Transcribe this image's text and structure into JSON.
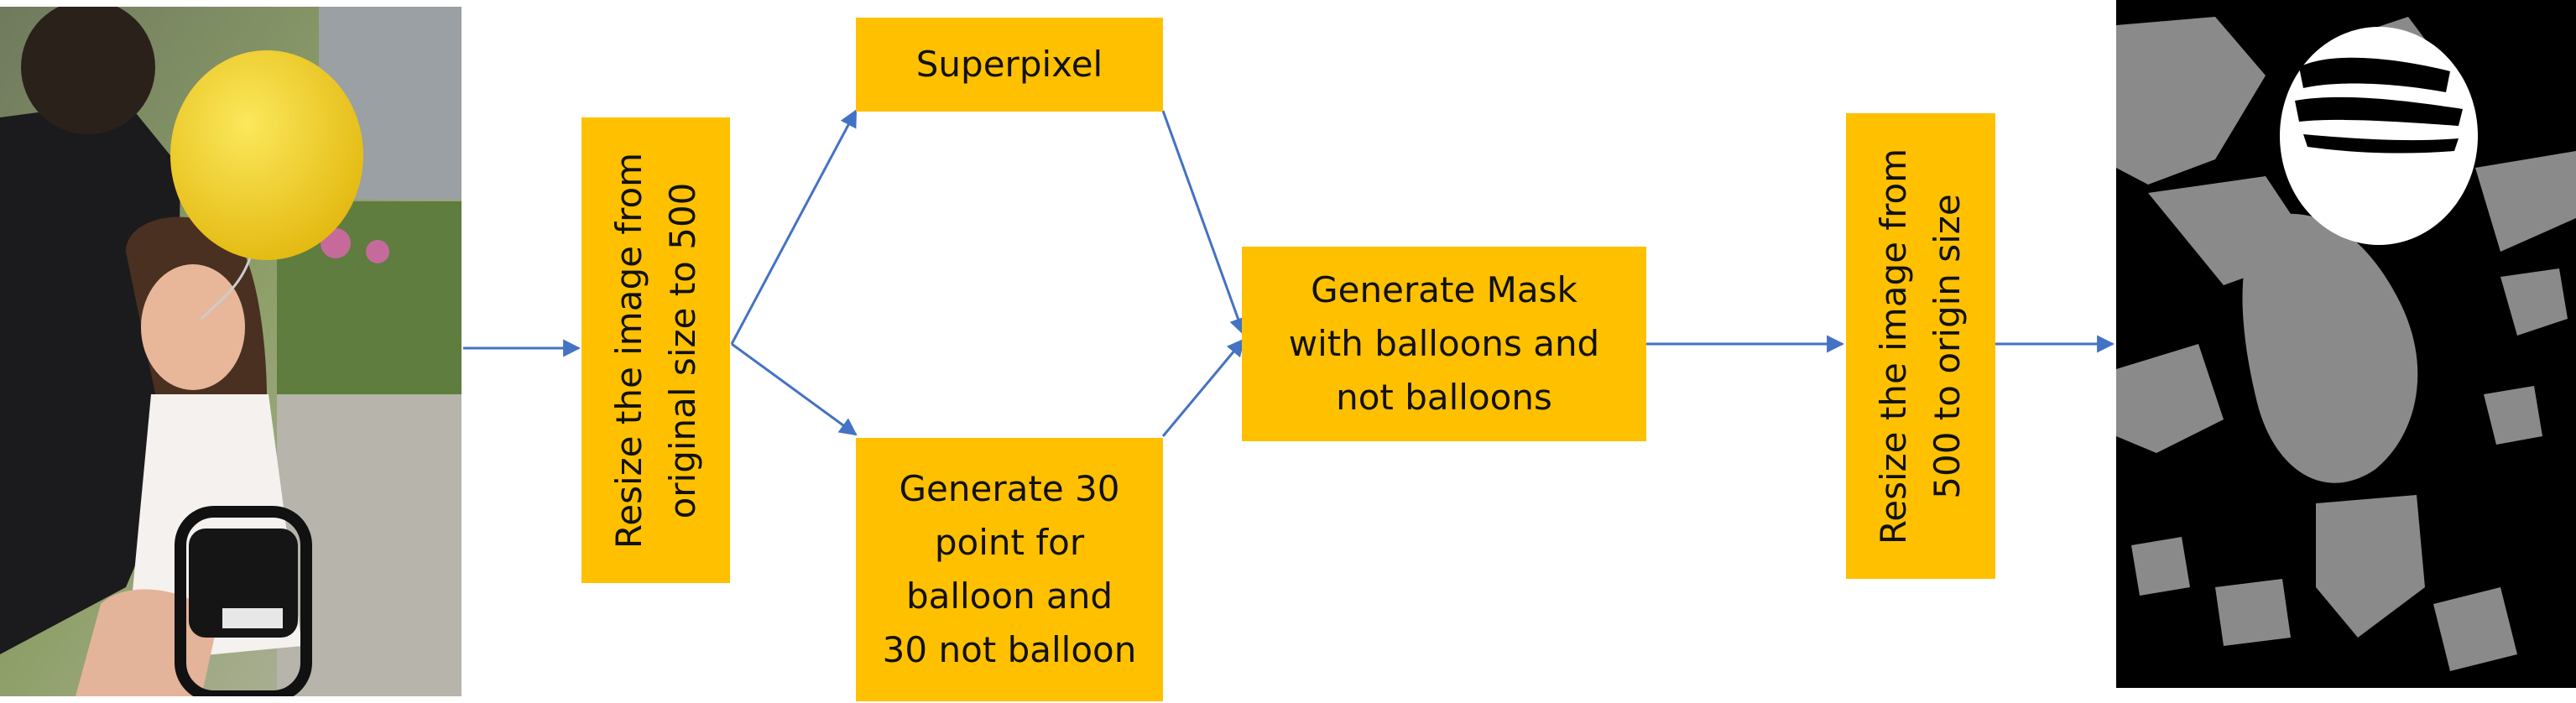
{
  "steps": {
    "resize_down": "Resize the image from\noriginal size to 500",
    "superpixel": "Superpixel",
    "generate_points": "Generate 30\npoint for\nballoon and\n30 not balloon",
    "generate_mask": "Generate Mask\nwith balloons and\nnot balloons",
    "resize_up": "Resize the image from\n500 to origin size"
  },
  "colors": {
    "box_fill": "#FFC000",
    "arrow": "#4472C4",
    "balloon": "#F2D21A",
    "mask_gray": "#8A8A8A"
  },
  "images": {
    "input_photo": "girl-with-yellow-balloon-photo",
    "output_mask": "balloon-segmentation-mask"
  }
}
